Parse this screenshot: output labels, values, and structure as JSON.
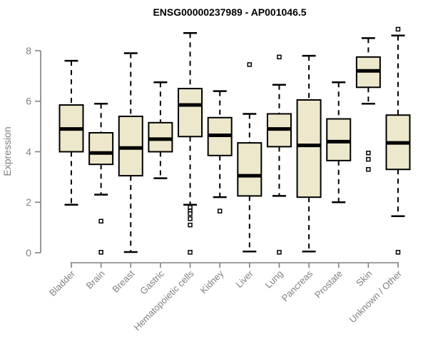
{
  "header": {
    "title": "ENSG00000237989 - AP001046.5"
  },
  "chart_data": {
    "type": "boxplot",
    "title": "ENSG00000237989 - AP001046.5",
    "xlabel": "",
    "ylabel": "Expression",
    "yticks": [
      0,
      2,
      4,
      6,
      8
    ],
    "ylim": [
      0,
      8.9
    ],
    "grid": false,
    "legend": "none",
    "colors": {
      "box_fill": "#EDE8CC",
      "box_border": "#000000",
      "median": "#000000",
      "whisker": "#000000",
      "outlier_fill": "#ffffff",
      "axis": "#808080",
      "title": "#000000"
    },
    "categories": [
      "Bladder",
      "Brain",
      "Breast",
      "Gastric",
      "Hematopoietic cells",
      "Kidney",
      "Liver",
      "Lung",
      "Pancreas",
      "Prostate",
      "Skin",
      "Unknown / Other"
    ],
    "boxes": [
      {
        "category": "Bladder",
        "whisker_low": 1.9,
        "q1": 4.0,
        "median": 4.9,
        "q3": 5.85,
        "whisker_high": 7.6,
        "outliers": []
      },
      {
        "category": "Brain",
        "whisker_low": 2.3,
        "q1": 3.5,
        "median": 3.95,
        "q3": 4.75,
        "whisker_high": 5.9,
        "outliers": [
          1.25,
          0.02
        ]
      },
      {
        "category": "Breast",
        "whisker_low": 0.03,
        "q1": 3.05,
        "median": 4.15,
        "q3": 5.4,
        "whisker_high": 7.9,
        "outliers": []
      },
      {
        "category": "Gastric",
        "whisker_low": 2.95,
        "q1": 4.0,
        "median": 4.5,
        "q3": 5.15,
        "whisker_high": 6.75,
        "outliers": []
      },
      {
        "category": "Hematopoietic cells",
        "whisker_low": 1.9,
        "q1": 4.6,
        "median": 5.85,
        "q3": 6.5,
        "whisker_high": 8.7,
        "outliers": [
          1.8,
          1.65,
          1.55,
          1.35,
          1.1,
          0.02
        ]
      },
      {
        "category": "Kidney",
        "whisker_low": 2.2,
        "q1": 3.85,
        "median": 4.65,
        "q3": 5.35,
        "whisker_high": 6.4,
        "outliers": [
          1.65
        ]
      },
      {
        "category": "Liver",
        "whisker_low": 0.05,
        "q1": 2.25,
        "median": 3.05,
        "q3": 4.35,
        "whisker_high": 5.5,
        "outliers": [
          7.45
        ]
      },
      {
        "category": "Lung",
        "whisker_low": 2.25,
        "q1": 4.2,
        "median": 4.9,
        "q3": 5.5,
        "whisker_high": 6.65,
        "outliers": [
          7.75,
          0.02
        ]
      },
      {
        "category": "Pancreas",
        "whisker_low": 0.05,
        "q1": 2.2,
        "median": 4.25,
        "q3": 6.05,
        "whisker_high": 7.8,
        "outliers": []
      },
      {
        "category": "Prostate",
        "whisker_low": 2.0,
        "q1": 3.65,
        "median": 4.4,
        "q3": 5.3,
        "whisker_high": 6.75,
        "outliers": []
      },
      {
        "category": "Skin",
        "whisker_low": 5.9,
        "q1": 6.55,
        "median": 7.2,
        "q3": 7.75,
        "whisker_high": 8.5,
        "outliers": [
          3.95,
          3.7,
          3.3
        ]
      },
      {
        "category": "Unknown / Other",
        "whisker_low": 1.45,
        "q1": 3.3,
        "median": 4.35,
        "q3": 5.45,
        "whisker_high": 8.6,
        "outliers": [
          8.85,
          0.02
        ]
      }
    ]
  }
}
